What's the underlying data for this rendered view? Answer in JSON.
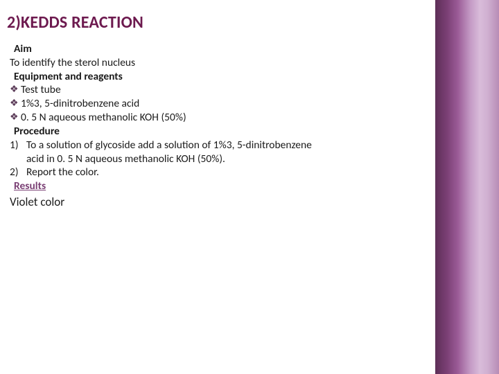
{
  "colors": {
    "title_color": "#6d1a4f",
    "body_color": "#1a1a1a",
    "bullet_color": "#5b3b58",
    "results_color": "#7a3f74",
    "background": "#ffffff",
    "side_gradient": [
      "#5d2f57",
      "#7a3f74",
      "#9a5a96",
      "#c49ac5",
      "#d9bcda",
      "#d0b0d1",
      "#b78cb6"
    ]
  },
  "typography": {
    "title_fontsize": 24,
    "title_weight": 700,
    "body_fontsize": 15.5,
    "result_fontsize": 17,
    "line_height": 1.28,
    "font_family": "Segoe UI"
  },
  "title": "2)KEDDS REACTION",
  "sections": {
    "aim": {
      "label": "Aim",
      "text": "To identify the sterol nucleus"
    },
    "equipment": {
      "label": "Equipment and reagents",
      "items": [
        "Test tube",
        "1%3, 5-dinitrobenzene acid",
        "0. 5 N aqueous methanolic KOH (50%)"
      ]
    },
    "procedure": {
      "label": "Procedure",
      "steps": [
        {
          "num": "1)",
          "text_a": "To a solution of glycoside add a solution of 1%3, 5-dinitrobenzene",
          "text_b": "acid in 0. 5 N aqueous methanolic KOH (50%)."
        },
        {
          "num": "2)",
          "text_a": "Report the color."
        }
      ]
    },
    "results": {
      "label": "Results",
      "text": "Violet color"
    }
  },
  "bullet_glyph": "❖",
  "layout": {
    "slide_width": 720,
    "slide_height": 540,
    "side_panel_width": 92
  }
}
